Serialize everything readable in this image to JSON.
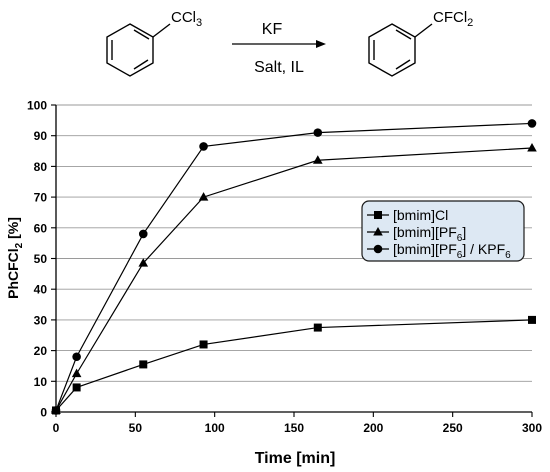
{
  "reaction": {
    "reactant_group": "CCl3",
    "reagent_top": "KF",
    "reagent_bottom": "Salt, IL",
    "product_group": "CFCl2"
  },
  "chart_data": {
    "type": "line",
    "xlabel": "Time [min]",
    "ylabel": "PhCFCl2 [%]",
    "xlim": [
      0,
      300
    ],
    "ylim": [
      0,
      100
    ],
    "xticks": [
      0,
      50,
      100,
      150,
      200,
      250,
      300
    ],
    "yticks": [
      0,
      10,
      20,
      30,
      40,
      50,
      60,
      70,
      80,
      90,
      100
    ],
    "grid": "horizontal",
    "legend_position": "center-right",
    "legend_background": "#dde8f3",
    "series": [
      {
        "name": "[bmim]Cl",
        "marker": "square",
        "x": [
          0,
          13,
          55,
          93,
          165,
          300
        ],
        "y": [
          0.5,
          8,
          15.5,
          22,
          27.5,
          30
        ]
      },
      {
        "name": "[bmim][PF6]",
        "marker": "triangle",
        "x": [
          0,
          13,
          55,
          93,
          165,
          300
        ],
        "y": [
          0.5,
          12.5,
          48.5,
          70,
          82,
          86
        ]
      },
      {
        "name": "[bmim][PF6] / KPF6",
        "marker": "circle",
        "x": [
          0,
          13,
          55,
          93,
          165,
          300
        ],
        "y": [
          0.5,
          18,
          58,
          86.5,
          91,
          94
        ]
      }
    ]
  }
}
